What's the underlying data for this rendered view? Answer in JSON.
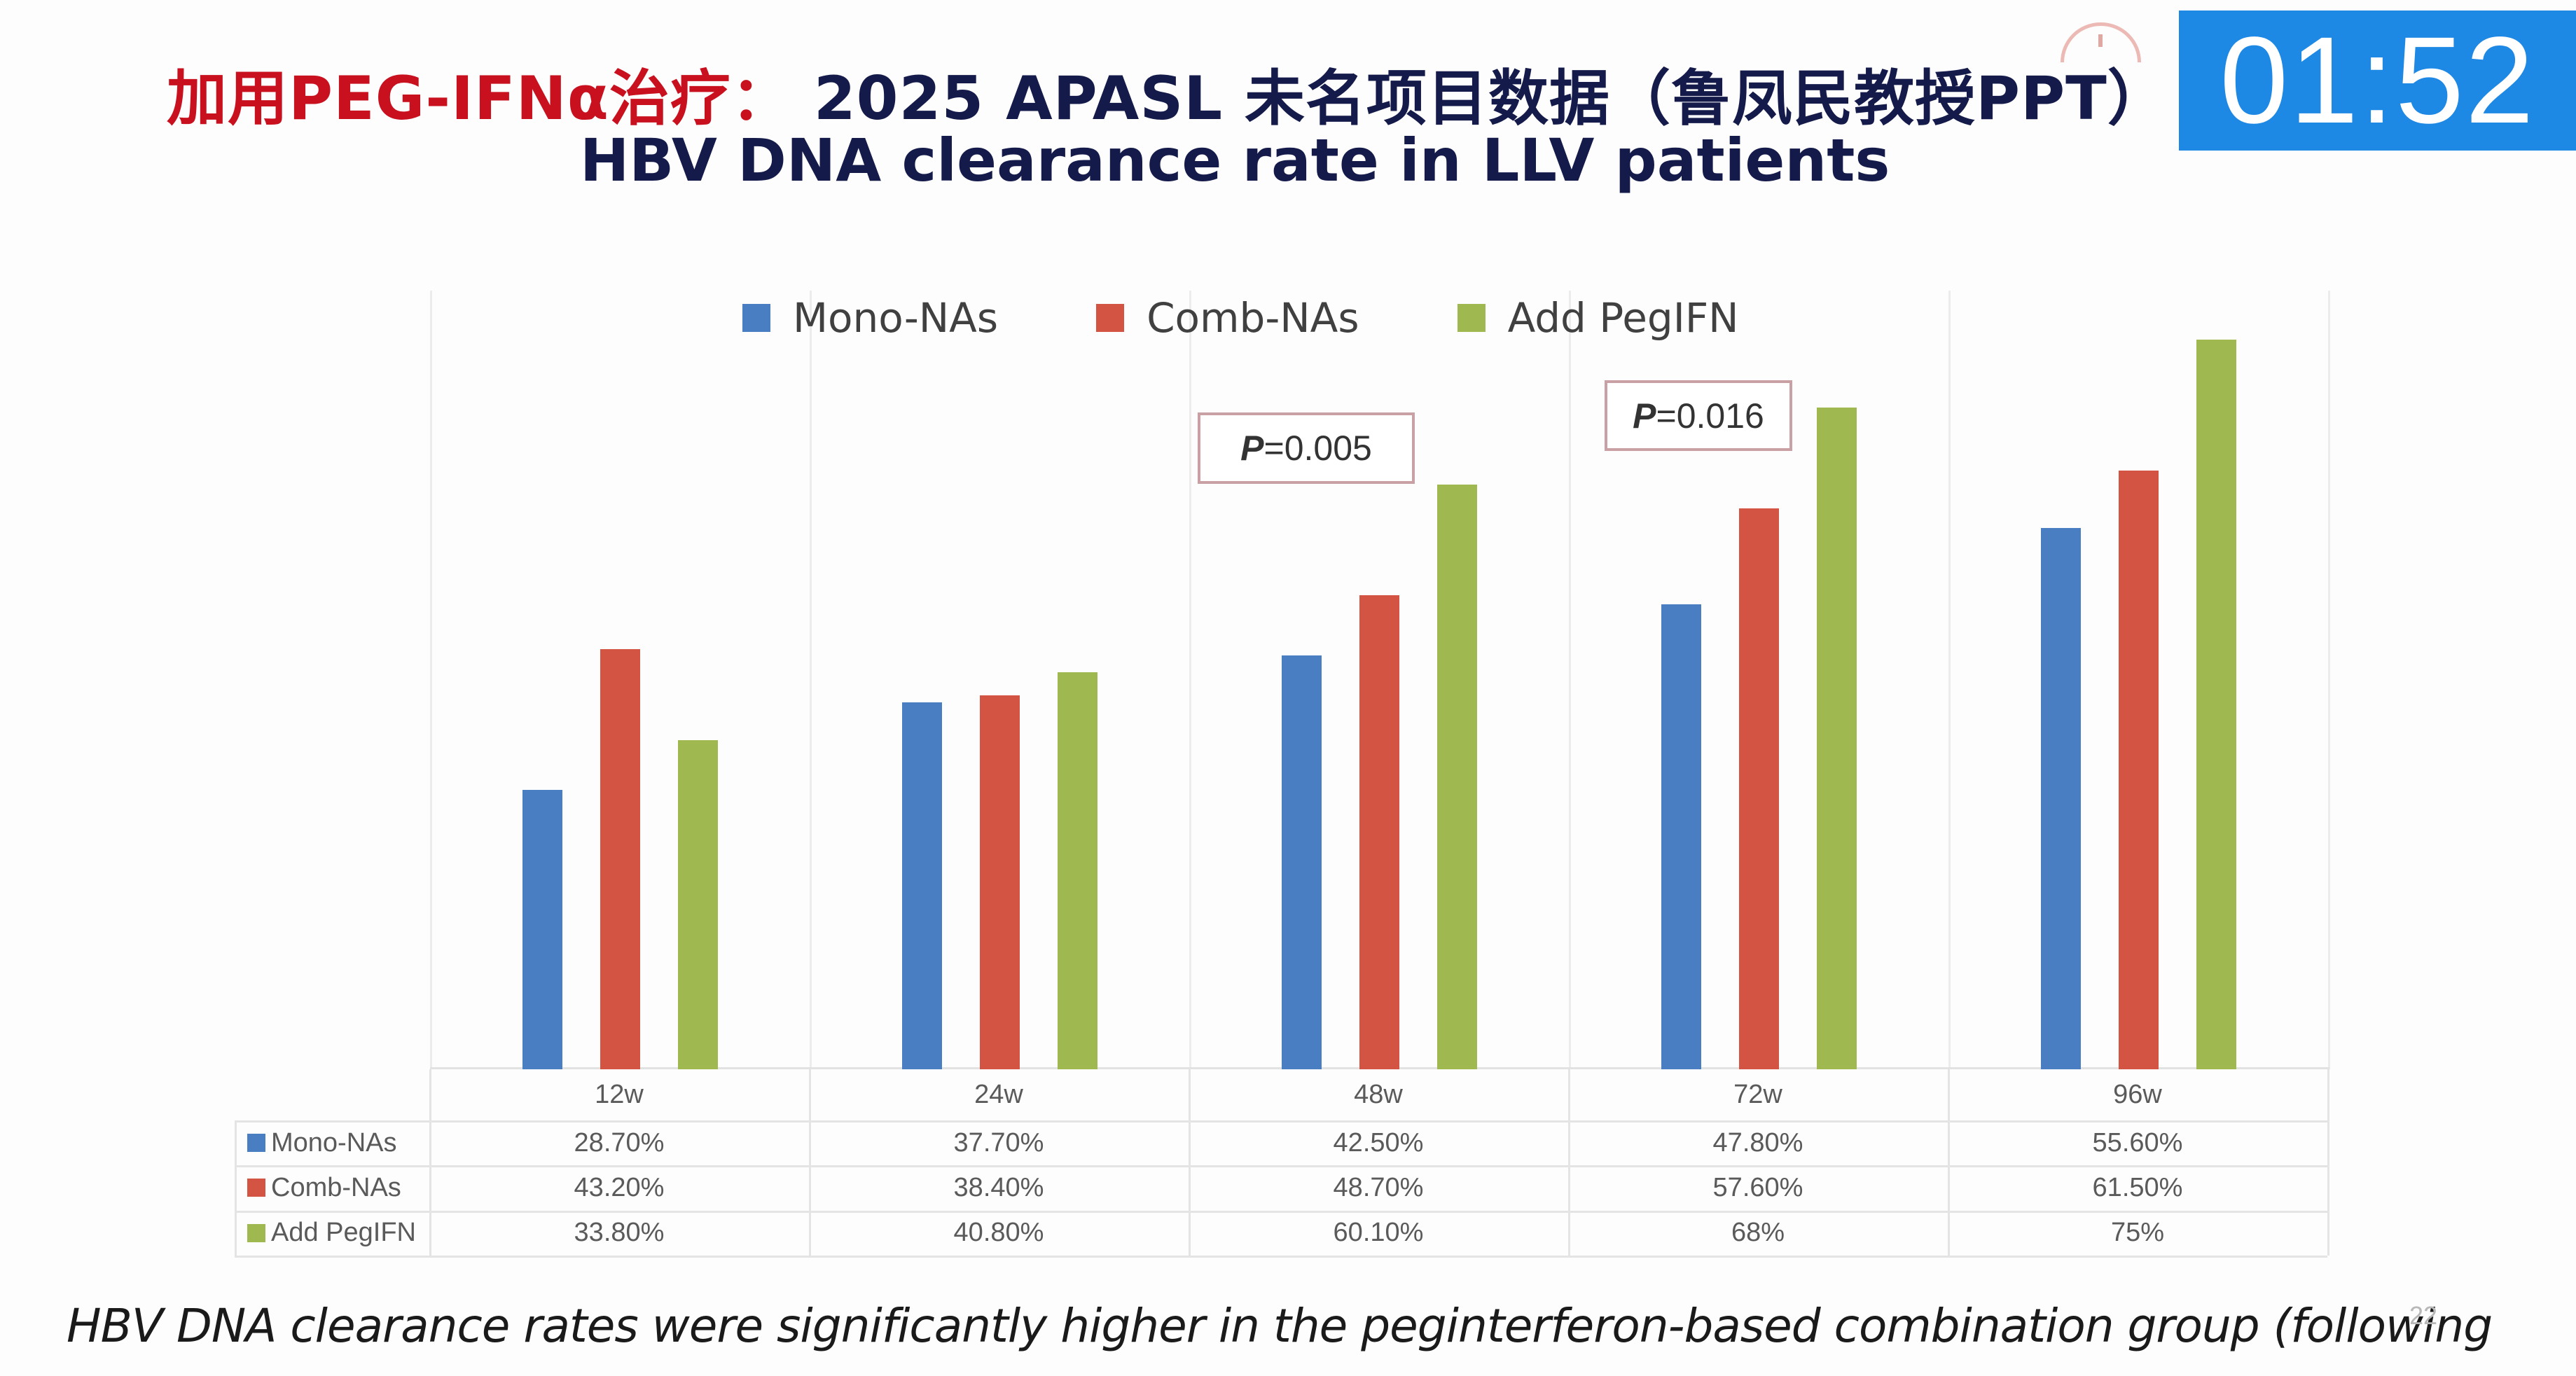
{
  "header": {
    "title_red": "加用PEG-IFNα治疗：",
    "title_navy": " 2025 APASL 未名项目数据（鲁凤民教授PPT）",
    "subtitle": "HBV DNA clearance rate in LLV patients"
  },
  "timer": {
    "icon": "timer-icon",
    "value": "01:52",
    "background": "#1e88e5"
  },
  "footer": {
    "caption": "HBV DNA clearance rates were significantly higher in the peginterferon-based combination group (following",
    "slide_number": "22"
  },
  "annotations": [
    {
      "label": "P",
      "value": "=0.005",
      "category": "48w"
    },
    {
      "label": "P",
      "value": "=0.016",
      "category": "72w"
    }
  ],
  "table": {
    "header": [
      "",
      "12w",
      "24w",
      "48w",
      "72w",
      "96w"
    ],
    "rows": [
      {
        "label": "Mono-NAs",
        "color": "#4a7ec3",
        "cells": [
          "28.70%",
          "37.70%",
          "42.50%",
          "47.80%",
          "55.60%"
        ]
      },
      {
        "label": "Comb-NAs",
        "color": "#d45443",
        "cells": [
          "43.20%",
          "38.40%",
          "48.70%",
          "57.60%",
          "61.50%"
        ]
      },
      {
        "label": "Add PegIFN",
        "color": "#9fb84f",
        "cells": [
          "33.80%",
          "40.80%",
          "60.10%",
          "68%",
          "75%"
        ]
      }
    ]
  },
  "chart_data": {
    "type": "bar",
    "title": "HBV DNA clearance rate in LLV patients",
    "xlabel": "",
    "ylabel": "",
    "categories": [
      "12w",
      "24w",
      "48w",
      "72w",
      "96w"
    ],
    "series": [
      {
        "name": "Mono-NAs",
        "color": "#4a7ec3",
        "values": [
          28.7,
          37.7,
          42.5,
          47.8,
          55.6
        ]
      },
      {
        "name": "Comb-NAs",
        "color": "#d45443",
        "values": [
          43.2,
          38.4,
          48.7,
          57.6,
          61.5
        ]
      },
      {
        "name": "Add PegIFN",
        "color": "#9fb84f",
        "values": [
          33.8,
          40.8,
          60.1,
          68.0,
          75.0
        ]
      }
    ],
    "ylim": [
      0,
      80
    ],
    "grid": "vertical category separators",
    "legend_position": "top",
    "annotations": [
      "P=0.005 (48w)",
      "P=0.016 (72w)"
    ],
    "data_table": true
  }
}
